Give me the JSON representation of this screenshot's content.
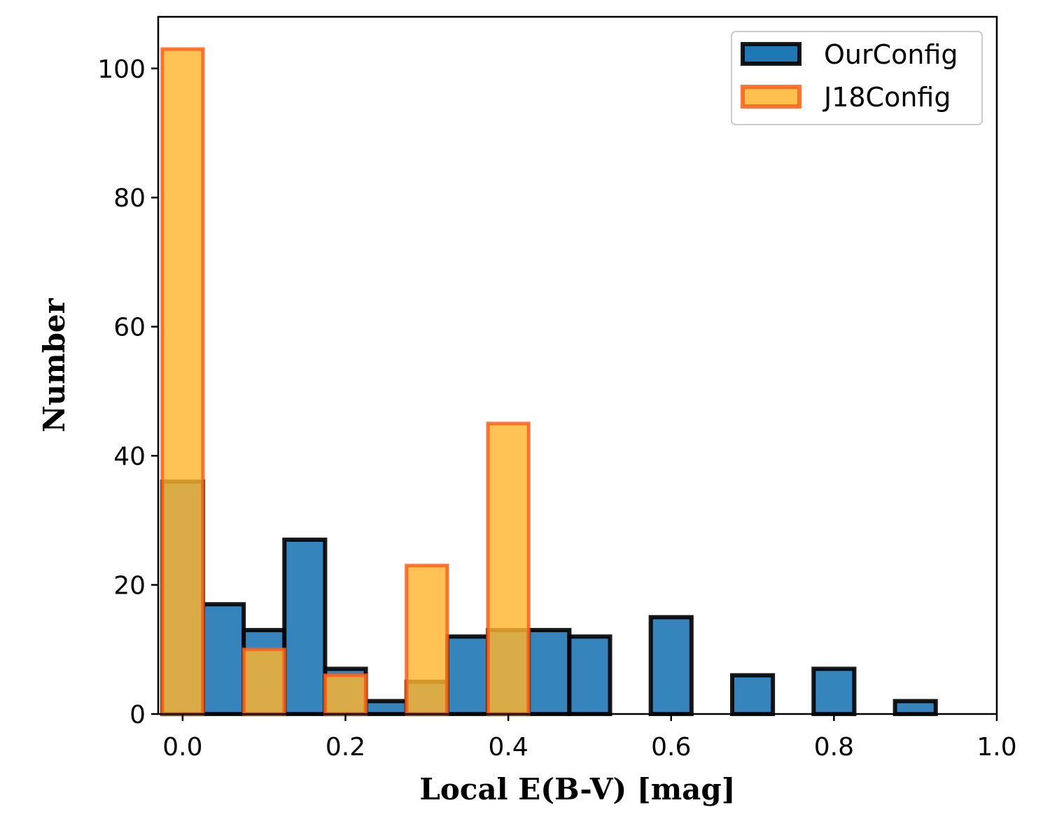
{
  "chart_data": {
    "type": "bar",
    "histogram": true,
    "xlabel": "Local E(B-V) [mag]",
    "ylabel": "Number",
    "xlim": [
      -0.03,
      1.0
    ],
    "ylim": [
      0,
      108
    ],
    "xticks": [
      0.0,
      0.2,
      0.4,
      0.6,
      0.8,
      1.0
    ],
    "xtick_labels": [
      "0.0",
      "0.2",
      "0.4",
      "0.6",
      "0.8",
      "1.0"
    ],
    "yticks": [
      0,
      20,
      40,
      60,
      80,
      100
    ],
    "ytick_labels": [
      "0",
      "20",
      "40",
      "60",
      "80",
      "100"
    ],
    "bin_edges": [
      -0.025,
      0.025,
      0.075,
      0.125,
      0.175,
      0.225,
      0.275,
      0.325,
      0.375,
      0.425,
      0.475,
      0.525,
      0.575,
      0.625,
      0.675,
      0.725,
      0.775,
      0.825,
      0.875,
      0.925,
      0.975
    ],
    "legend_position": "top-right",
    "series": [
      {
        "name": "OurConfig",
        "fill": "#1f77b4",
        "edge": "#000000",
        "counts": [
          36,
          17,
          13,
          27,
          7,
          2,
          5,
          12,
          13,
          13,
          12,
          0,
          15,
          0,
          6,
          0,
          7,
          0,
          2,
          0
        ]
      },
      {
        "name": "J18Config",
        "fill": "#ffb52e",
        "edge": "#ff5e1a",
        "counts": [
          103,
          0,
          10,
          0,
          6,
          0,
          23,
          0,
          45,
          0,
          0,
          0,
          0,
          0,
          0,
          0,
          0,
          0,
          0,
          0
        ]
      }
    ]
  }
}
